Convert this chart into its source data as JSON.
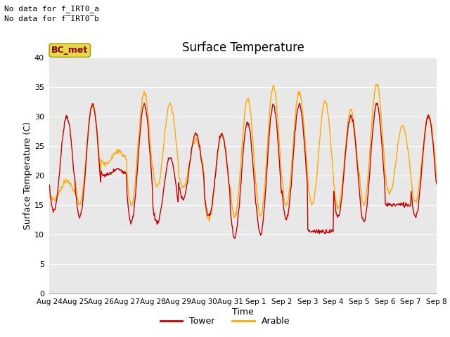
{
  "title": "Surface Temperature",
  "xlabel": "Time",
  "ylabel": "Surface Temperature (C)",
  "annotation_line1": "No data for f_IRT0_a",
  "annotation_line2": "No data for f̅IRT0̅b",
  "bc_met_label": "BC_met",
  "bc_met_facecolor": "#e8d84a",
  "bc_met_edgecolor": "#999900",
  "bc_met_text_color": "#8b0000",
  "ylim": [
    0,
    40
  ],
  "yticks": [
    0,
    5,
    10,
    15,
    20,
    25,
    30,
    35,
    40
  ],
  "xtick_labels": [
    "Aug 24",
    "Aug 25",
    "Aug 26",
    "Aug 27",
    "Aug 28",
    "Aug 29",
    "Aug 30",
    "Aug 31",
    "Sep 1",
    "Sep 2",
    "Sep 3",
    "Sep 4",
    "Sep 5",
    "Sep 6",
    "Sep 7",
    "Sep 8"
  ],
  "tower_color": "#cc0000",
  "arable_color": "#ffaa00",
  "plot_bg": "#e8e8e8",
  "grid_color": "#ffffff",
  "legend_labels": [
    "Tower",
    "Arable"
  ],
  "n_days": 15,
  "ppd": 48,
  "tower_peaks": [
    30,
    32,
    21,
    32,
    23,
    27,
    27,
    29,
    32,
    32,
    10.5,
    30,
    32,
    15,
    30
  ],
  "tower_mins": [
    14,
    13,
    20,
    12,
    12,
    16,
    13,
    9.5,
    10,
    12.5,
    10.5,
    13,
    12,
    15,
    13
  ],
  "arable_peaks": [
    19,
    32,
    24,
    34,
    32,
    26,
    27,
    33,
    35,
    34,
    32.5,
    31,
    35.5,
    28.5,
    30
  ],
  "arable_mins": [
    16,
    15,
    22,
    15,
    18,
    18,
    12.5,
    13,
    13,
    15,
    15,
    14.5,
    15,
    17,
    15.5
  ],
  "peak_hour": 14,
  "min_hour": 4
}
